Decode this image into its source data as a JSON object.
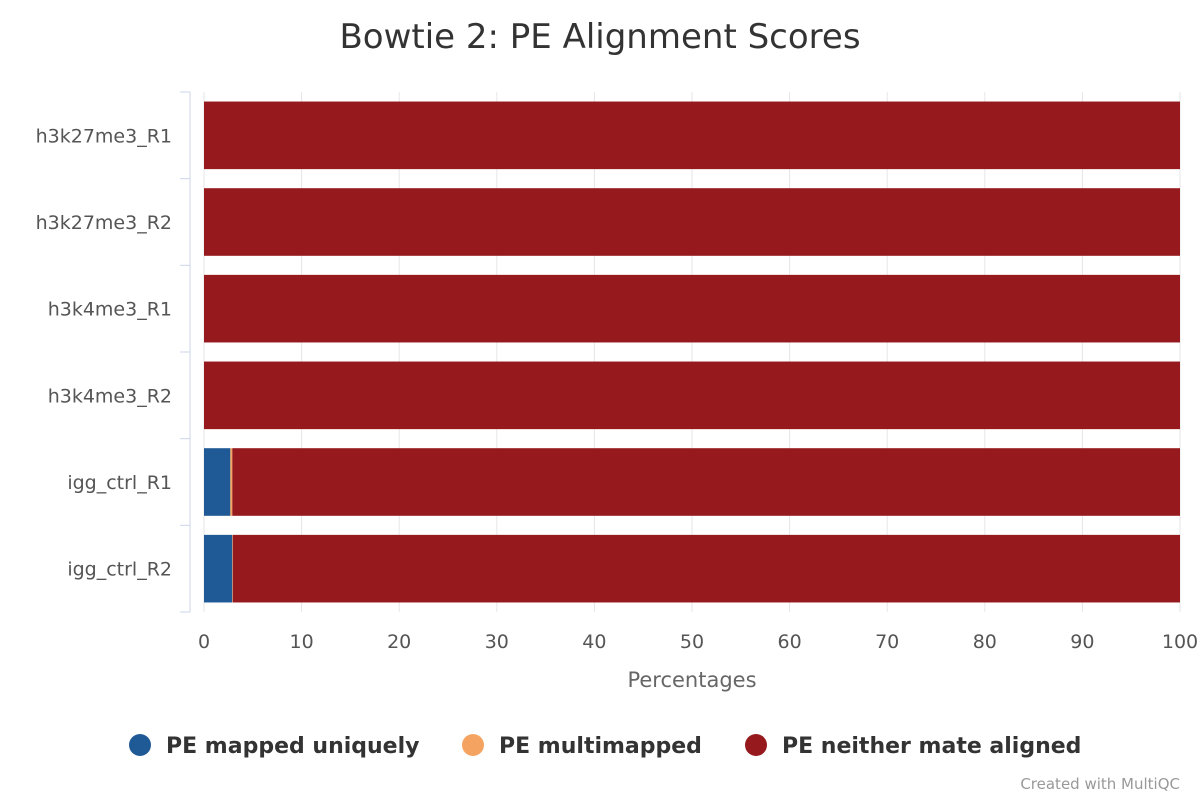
{
  "chart_data": {
    "type": "bar",
    "orientation": "horizontal",
    "stacked": true,
    "title": "Bowtie 2: PE Alignment Scores",
    "xlabel": "Percentages",
    "ylabel": "",
    "xlim": [
      0,
      100
    ],
    "xticks": [
      0,
      10,
      20,
      30,
      40,
      50,
      60,
      70,
      80,
      90,
      100
    ],
    "grid": true,
    "legend_position": "bottom-center",
    "categories": [
      "h3k27me3_R1",
      "h3k27me3_R2",
      "h3k4me3_R1",
      "h3k4me3_R2",
      "igg_ctrl_R1",
      "igg_ctrl_R2"
    ],
    "series": [
      {
        "name": "PE mapped uniquely",
        "color": "#1f5a96",
        "values": [
          0.0,
          0.0,
          0.0,
          0.0,
          2.7,
          2.9
        ]
      },
      {
        "name": "PE multimapped",
        "color": "#f4a460",
        "values": [
          0.0,
          0.0,
          0.0,
          0.0,
          0.2,
          0.05
        ]
      },
      {
        "name": "PE neither mate aligned",
        "color": "#961a1d",
        "values": [
          100.0,
          100.0,
          100.0,
          100.0,
          97.1,
          97.05
        ]
      }
    ]
  },
  "credit": "Created with MultiQC"
}
